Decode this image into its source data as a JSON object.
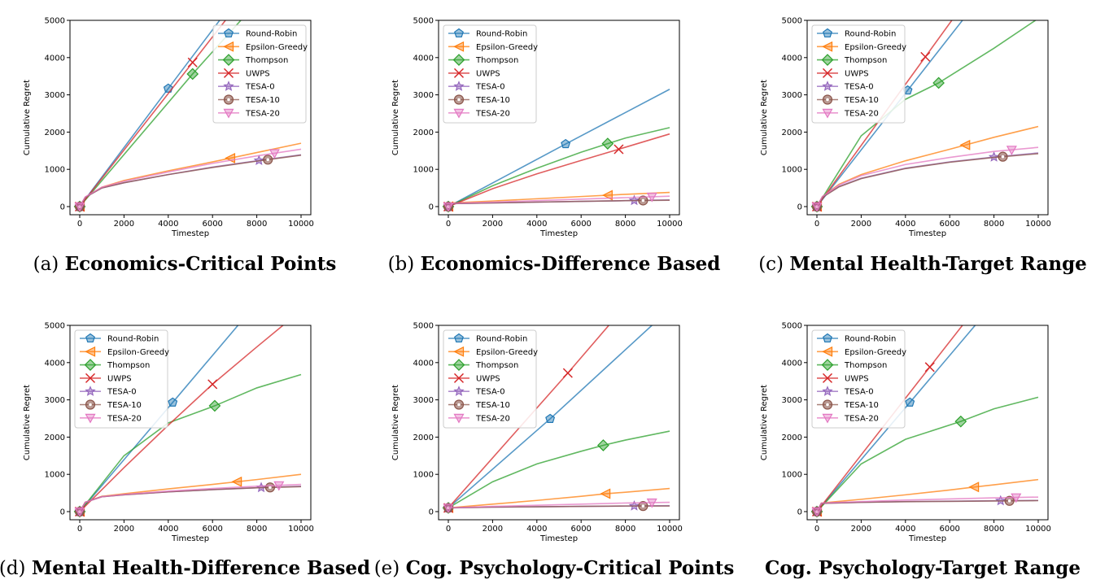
{
  "legend_entries": [
    "Round-Robin",
    "Epsilon-Greedy",
    "Thompson",
    "UWPS",
    "TESA-0",
    "TESA-10",
    "TESA-20"
  ],
  "series_style": {
    "Round-Robin": {
      "color": "#1f77b4",
      "marker": "pentagon"
    },
    "Epsilon-Greedy": {
      "color": "#ff7f0e",
      "marker": "triangle-left"
    },
    "Thompson": {
      "color": "#2ca02c",
      "marker": "diamond"
    },
    "UWPS": {
      "color": "#d62728",
      "marker": "x"
    },
    "TESA-0": {
      "color": "#9467bd",
      "marker": "star"
    },
    "TESA-10": {
      "color": "#8c564b",
      "marker": "circle-dot"
    },
    "TESA-20": {
      "color": "#e377c2",
      "marker": "triangle-down"
    }
  },
  "chart_data": [
    {
      "type": "line",
      "caption_prefix": "(a)",
      "caption": "Economics-Critical Points",
      "xlabel": "Timestep",
      "ylabel": "Cumulative Regret",
      "xlim": [
        0,
        10000
      ],
      "ylim": [
        0,
        5000
      ],
      "xticks": [
        "0",
        "2000",
        "4000",
        "6000",
        "8000",
        "10000"
      ],
      "yticks": [
        "0",
        "1000",
        "2000",
        "3000",
        "4000",
        "5000"
      ],
      "legend_position": "upper-right",
      "series": [
        {
          "name": "Round-Robin",
          "x": [
            0,
            4000,
            10000
          ],
          "y": [
            0,
            3170,
            7900
          ],
          "marker_x": 4000
        },
        {
          "name": "Epsilon-Greedy",
          "x": [
            0,
            250,
            1000,
            2000,
            4000,
            6000,
            8000,
            10000
          ],
          "y": [
            0,
            250,
            520,
            700,
            960,
            1200,
            1450,
            1700
          ],
          "marker_x": 6800
        },
        {
          "name": "Thompson",
          "x": [
            0,
            5100,
            10000
          ],
          "y": [
            0,
            3560,
            6800
          ],
          "marker_x": 5100
        },
        {
          "name": "UWPS",
          "x": [
            0,
            5100,
            10000
          ],
          "y": [
            0,
            3870,
            7600
          ],
          "marker_x": 5100
        },
        {
          "name": "TESA-0",
          "x": [
            0,
            250,
            1000,
            2000,
            4000,
            6000,
            8000,
            10000
          ],
          "y": [
            0,
            250,
            500,
            640,
            860,
            1060,
            1230,
            1390
          ],
          "marker_x": 8100
        },
        {
          "name": "TESA-10",
          "x": [
            0,
            250,
            1000,
            2000,
            4000,
            6000,
            8000,
            10000
          ],
          "y": [
            0,
            250,
            500,
            640,
            860,
            1050,
            1220,
            1380
          ],
          "marker_x": 8500
        },
        {
          "name": "TESA-20",
          "x": [
            0,
            250,
            1000,
            2000,
            4000,
            6000,
            8000,
            10000
          ],
          "y": [
            0,
            260,
            520,
            680,
            930,
            1160,
            1360,
            1540
          ],
          "marker_x": 8800
        }
      ]
    },
    {
      "type": "line",
      "caption_prefix": "(b)",
      "caption": "Economics-Difference Based",
      "xlabel": "Timestep",
      "ylabel": "Cumulative Regret",
      "xlim": [
        0,
        10000
      ],
      "ylim": [
        0,
        5000
      ],
      "xticks": [
        "0",
        "2000",
        "4000",
        "6000",
        "8000",
        "10000"
      ],
      "yticks": [
        "0",
        "1000",
        "2000",
        "3000",
        "4000",
        "5000"
      ],
      "legend_position": "upper-left",
      "series": [
        {
          "name": "Round-Robin",
          "x": [
            0,
            5300,
            10000
          ],
          "y": [
            0,
            1680,
            3150
          ],
          "marker_x": 5300
        },
        {
          "name": "Epsilon-Greedy",
          "x": [
            0,
            200,
            2000,
            4000,
            6000,
            8000,
            10000
          ],
          "y": [
            0,
            100,
            150,
            210,
            270,
            330,
            380
          ],
          "marker_x": 7200
        },
        {
          "name": "Thompson",
          "x": [
            0,
            2000,
            4000,
            6000,
            7200,
            8000,
            10000
          ],
          "y": [
            0,
            560,
            1030,
            1460,
            1690,
            1840,
            2120
          ],
          "marker_x": 7200
        },
        {
          "name": "UWPS",
          "x": [
            0,
            2000,
            4000,
            6000,
            7700,
            10000
          ],
          "y": [
            0,
            480,
            880,
            1240,
            1540,
            1950
          ],
          "marker_x": 7700
        },
        {
          "name": "TESA-0",
          "x": [
            0,
            200,
            2000,
            4000,
            6000,
            8000,
            10000
          ],
          "y": [
            0,
            80,
            100,
            120,
            140,
            160,
            180
          ],
          "marker_x": 8400
        },
        {
          "name": "TESA-10",
          "x": [
            0,
            200,
            2000,
            4000,
            6000,
            8000,
            10000
          ],
          "y": [
            0,
            80,
            100,
            120,
            140,
            160,
            170
          ],
          "marker_x": 8800
        },
        {
          "name": "TESA-20",
          "x": [
            0,
            200,
            2000,
            4000,
            6000,
            8000,
            10000
          ],
          "y": [
            0,
            90,
            120,
            160,
            200,
            240,
            280
          ],
          "marker_x": 9200
        }
      ]
    },
    {
      "type": "line",
      "caption_prefix": "(c)",
      "caption": "Mental Health-Target Range",
      "xlabel": "Timestep",
      "ylabel": "Cumulative Regret",
      "xlim": [
        0,
        10000
      ],
      "ylim": [
        0,
        5000
      ],
      "xticks": [
        "0",
        "2000",
        "4000",
        "6000",
        "8000",
        "10000"
      ],
      "yticks": [
        "0",
        "1000",
        "2000",
        "3000",
        "4000",
        "5000"
      ],
      "legend_position": "upper-left",
      "series": [
        {
          "name": "Round-Robin",
          "x": [
            0,
            4100,
            10000
          ],
          "y": [
            0,
            3120,
            7600
          ],
          "marker_x": 4100
        },
        {
          "name": "Epsilon-Greedy",
          "x": [
            0,
            250,
            1000,
            2000,
            4000,
            6000,
            8000,
            10000
          ],
          "y": [
            0,
            270,
            600,
            860,
            1230,
            1540,
            1860,
            2150
          ],
          "marker_x": 6700
        },
        {
          "name": "Thompson",
          "x": [
            0,
            2000,
            4000,
            5500,
            8000,
            10000
          ],
          "y": [
            0,
            1900,
            2880,
            3320,
            4250,
            5050
          ],
          "marker_x": 5500
        },
        {
          "name": "UWPS",
          "x": [
            0,
            4900,
            10000
          ],
          "y": [
            0,
            4020,
            8200
          ],
          "marker_x": 4900
        },
        {
          "name": "TESA-0",
          "x": [
            0,
            250,
            1000,
            2000,
            4000,
            6000,
            8000,
            10000
          ],
          "y": [
            0,
            260,
            540,
            760,
            1030,
            1200,
            1330,
            1440
          ],
          "marker_x": 8000
        },
        {
          "name": "TESA-10",
          "x": [
            0,
            250,
            1000,
            2000,
            4000,
            6000,
            8000,
            10000
          ],
          "y": [
            0,
            250,
            530,
            750,
            1020,
            1190,
            1320,
            1420
          ],
          "marker_x": 8400
        },
        {
          "name": "TESA-20",
          "x": [
            0,
            250,
            1000,
            2000,
            4000,
            6000,
            8000,
            10000
          ],
          "y": [
            0,
            270,
            580,
            830,
            1130,
            1320,
            1480,
            1590
          ],
          "marker_x": 8800
        }
      ]
    },
    {
      "type": "line",
      "caption_prefix": "(d)",
      "caption": "Mental Health-Difference Based",
      "xlabel": "Timestep",
      "ylabel": "Cumulative Regret",
      "xlim": [
        0,
        10000
      ],
      "ylim": [
        0,
        5000
      ],
      "xticks": [
        "0",
        "2000",
        "4000",
        "6000",
        "8000",
        "10000"
      ],
      "yticks": [
        "0",
        "1000",
        "2000",
        "3000",
        "4000",
        "5000"
      ],
      "legend_position": "upper-left",
      "series": [
        {
          "name": "Round-Robin",
          "x": [
            0,
            4200,
            10000
          ],
          "y": [
            0,
            2930,
            7000
          ],
          "marker_x": 4200
        },
        {
          "name": "Epsilon-Greedy",
          "x": [
            0,
            250,
            1000,
            2000,
            4000,
            6000,
            8000,
            10000
          ],
          "y": [
            0,
            250,
            410,
            480,
            610,
            730,
            860,
            1000
          ],
          "marker_x": 7100
        },
        {
          "name": "Thompson",
          "x": [
            0,
            2000,
            4000,
            6100,
            8000,
            10000
          ],
          "y": [
            0,
            1500,
            2380,
            2840,
            3320,
            3680
          ],
          "marker_x": 6100
        },
        {
          "name": "UWPS",
          "x": [
            0,
            2000,
            4000,
            6000,
            8000,
            10000
          ],
          "y": [
            0,
            1180,
            2320,
            3420,
            4420,
            5400
          ],
          "marker_x": 6000
        },
        {
          "name": "TESA-0",
          "x": [
            0,
            250,
            1000,
            2000,
            4000,
            6000,
            8000,
            10000
          ],
          "y": [
            0,
            250,
            400,
            450,
            530,
            590,
            640,
            680
          ],
          "marker_x": 8200
        },
        {
          "name": "TESA-10",
          "x": [
            0,
            250,
            1000,
            2000,
            4000,
            6000,
            8000,
            10000
          ],
          "y": [
            0,
            250,
            400,
            450,
            530,
            590,
            640,
            670
          ],
          "marker_x": 8600
        },
        {
          "name": "TESA-20",
          "x": [
            0,
            250,
            1000,
            2000,
            4000,
            6000,
            8000,
            10000
          ],
          "y": [
            0,
            250,
            400,
            460,
            550,
            620,
            680,
            730
          ],
          "marker_x": 9000
        }
      ]
    },
    {
      "type": "line",
      "caption_prefix": "(e)",
      "caption": "Cog. Psychology-Critical Points",
      "xlabel": "Timestep",
      "ylabel": "Cumulative Regret",
      "xlim": [
        0,
        10000
      ],
      "ylim": [
        0,
        5000
      ],
      "xticks": [
        "0",
        "2000",
        "4000",
        "6000",
        "8000",
        "10000"
      ],
      "yticks": [
        "0",
        "1000",
        "2000",
        "3000",
        "4000",
        "5000"
      ],
      "legend_position": "upper-left",
      "series": [
        {
          "name": "Round-Robin",
          "x": [
            0,
            4600,
            9200,
            10000
          ],
          "y": [
            100,
            2490,
            5000,
            5400
          ],
          "marker_x": 4600
        },
        {
          "name": "Epsilon-Greedy",
          "x": [
            0,
            2000,
            4000,
            6000,
            7100,
            8000,
            10000
          ],
          "y": [
            100,
            200,
            300,
            410,
            480,
            520,
            620
          ],
          "marker_x": 7100
        },
        {
          "name": "Thompson",
          "x": [
            0,
            2000,
            4000,
            6000,
            7000,
            8000,
            10000
          ],
          "y": [
            100,
            800,
            1280,
            1620,
            1780,
            1920,
            2160
          ],
          "marker_x": 7000
        },
        {
          "name": "UWPS",
          "x": [
            0,
            5400,
            10000
          ],
          "y": [
            100,
            3720,
            6900
          ],
          "marker_x": 5400
        },
        {
          "name": "TESA-0",
          "x": [
            0,
            2000,
            4000,
            6000,
            8000,
            10000
          ],
          "y": [
            100,
            120,
            130,
            140,
            150,
            160
          ],
          "marker_x": 8400
        },
        {
          "name": "TESA-10",
          "x": [
            0,
            2000,
            4000,
            6000,
            8000,
            10000
          ],
          "y": [
            100,
            120,
            130,
            140,
            150,
            150
          ],
          "marker_x": 8800
        },
        {
          "name": "TESA-20",
          "x": [
            0,
            2000,
            4000,
            6000,
            8000,
            10000
          ],
          "y": [
            100,
            140,
            170,
            200,
            230,
            250
          ],
          "marker_x": 9200
        }
      ]
    },
    {
      "type": "line",
      "caption_prefix": "",
      "caption": "Cog. Psychology-Target Range",
      "xlabel": "Timestep",
      "ylabel": "Cumulative Regret",
      "xlim": [
        0,
        10000
      ],
      "ylim": [
        0,
        5000
      ],
      "xticks": [
        "0",
        "2000",
        "4000",
        "6000",
        "8000",
        "10000"
      ],
      "yticks": [
        "0",
        "1000",
        "2000",
        "3000",
        "4000",
        "5000"
      ],
      "legend_position": "upper-left",
      "series": [
        {
          "name": "Round-Robin",
          "x": [
            0,
            4200,
            10000
          ],
          "y": [
            0,
            2930,
            7000
          ],
          "marker_x": 4200
        },
        {
          "name": "Epsilon-Greedy",
          "x": [
            0,
            200,
            2000,
            4000,
            6000,
            7100,
            8000,
            10000
          ],
          "y": [
            0,
            230,
            330,
            450,
            580,
            660,
            720,
            860
          ],
          "marker_x": 7100
        },
        {
          "name": "Thompson",
          "x": [
            0,
            2000,
            4000,
            6500,
            8000,
            10000
          ],
          "y": [
            0,
            1280,
            1940,
            2420,
            2760,
            3070
          ],
          "marker_x": 6500
        },
        {
          "name": "UWPS",
          "x": [
            0,
            5100,
            10000
          ],
          "y": [
            0,
            3880,
            7600
          ],
          "marker_x": 5100
        },
        {
          "name": "TESA-0",
          "x": [
            0,
            200,
            2000,
            4000,
            6000,
            8000,
            10000
          ],
          "y": [
            0,
            220,
            250,
            270,
            280,
            290,
            300
          ],
          "marker_x": 8300
        },
        {
          "name": "TESA-10",
          "x": [
            0,
            200,
            2000,
            4000,
            6000,
            8000,
            10000
          ],
          "y": [
            0,
            220,
            250,
            265,
            275,
            285,
            295
          ],
          "marker_x": 8700
        },
        {
          "name": "TESA-20",
          "x": [
            0,
            200,
            2000,
            4000,
            6000,
            8000,
            10000
          ],
          "y": [
            0,
            230,
            270,
            310,
            340,
            370,
            390
          ],
          "marker_x": 9000
        }
      ]
    }
  ]
}
